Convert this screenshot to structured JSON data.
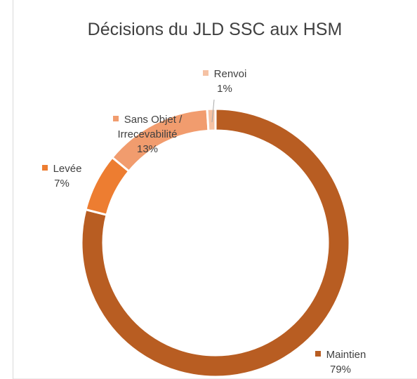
{
  "chart_data": {
    "type": "donut",
    "title": "Décisions du JLD SSC aux HSM",
    "categories": [
      "Maintien",
      "Levée",
      "Sans Objet / Irrecevabilité",
      "Renvoi"
    ],
    "values": [
      79,
      7,
      13,
      1
    ],
    "value_labels": [
      "79%",
      "7%",
      "13%",
      "1%"
    ],
    "colors": [
      "#b85d22",
      "#ed7d31",
      "#f19c6e",
      "#f5c2a4"
    ]
  }
}
